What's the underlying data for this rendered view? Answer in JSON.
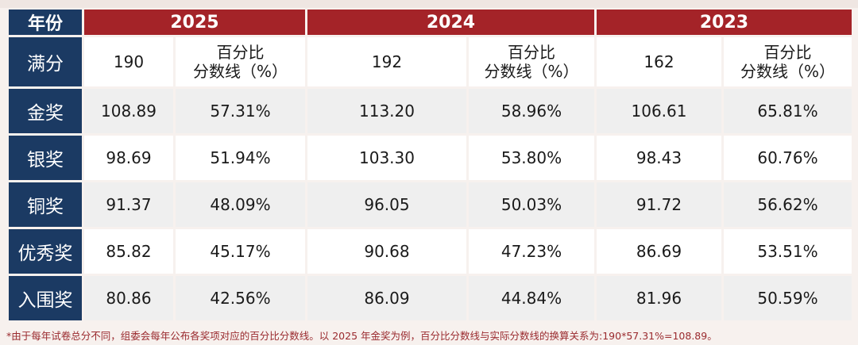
{
  "header": {
    "corner": "年份",
    "years": [
      "2025",
      "2024",
      "2023"
    ]
  },
  "full_marks_row": {
    "label": "满分",
    "cells": [
      {
        "full": "190",
        "pct_label": "百分比\n分数线（%）"
      },
      {
        "full": "192",
        "pct_label": "百分比\n分数线（%）"
      },
      {
        "full": "162",
        "pct_label": "百分比\n分数线（%）"
      }
    ]
  },
  "rows": [
    {
      "label": "金奖",
      "values": [
        "108.89",
        "57.31%",
        "113.20",
        "58.96%",
        "106.61",
        "65.81%"
      ]
    },
    {
      "label": "银奖",
      "values": [
        "98.69",
        "51.94%",
        "103.30",
        "53.80%",
        "98.43",
        "60.76%"
      ]
    },
    {
      "label": "铜奖",
      "values": [
        "91.37",
        "48.09%",
        "96.05",
        "50.03%",
        "91.72",
        "56.62%"
      ]
    },
    {
      "label": "优秀奖",
      "values": [
        "85.82",
        "45.17%",
        "90.68",
        "47.23%",
        "86.69",
        "53.51%"
      ]
    },
    {
      "label": "入围奖",
      "values": [
        "80.86",
        "42.56%",
        "86.09",
        "44.84%",
        "81.96",
        "50.59%"
      ]
    }
  ],
  "footnote": "*由于每年试卷总分不同，组委会每年公布各奖项对应的百分比分数线。以 2025 年金奖为例，百分比分数线与实际分数线的换算关系为:190*57.31%=108.89。",
  "colors": {
    "header_red": "#a42328",
    "row_head_navy": "#1b3a63",
    "footnote_red": "#9a2a2e"
  }
}
